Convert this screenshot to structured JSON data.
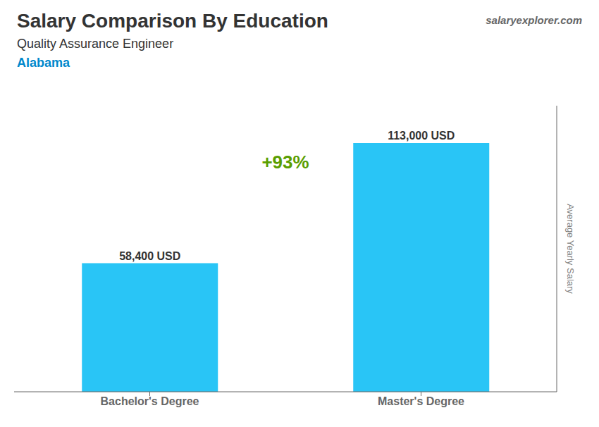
{
  "chart_data": {
    "type": "bar",
    "title": "Salary Comparison By Education",
    "subtitle": "Quality Assurance Engineer",
    "annotations": [
      "Alabama",
      "salaryexplorer.com",
      "+93%"
    ],
    "ylabel": "Average Yearly Salary",
    "categories": [
      "Bachelor's Degree",
      "Master's Degree"
    ],
    "values": [
      58400,
      113000
    ],
    "value_labels": [
      "58,400 USD",
      "113,000 USD"
    ],
    "data_labels": true,
    "color": "#29c5f6",
    "ylim": [
      0,
      130000
    ],
    "tick_labels": "x",
    "grid": false
  }
}
